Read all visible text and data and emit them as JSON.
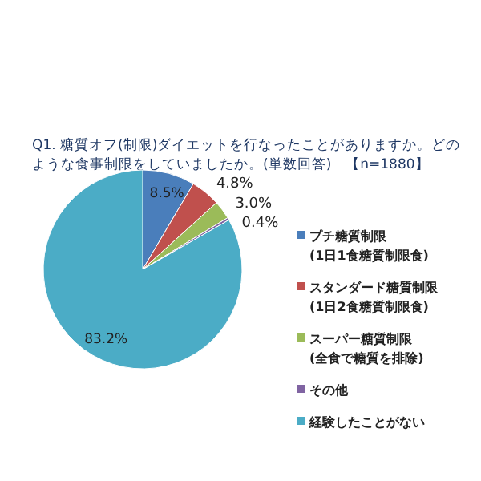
{
  "chart_data": {
    "type": "pie",
    "title": "Q1. 糖質オフ(制限)ダイエットを行なったことがありますか。どのような食事制限をしていましたか。(単数回答)　【n=1880】",
    "categories": [
      "プチ糖質制限\n(1日1食糖質制限食)",
      "スタンダード糖質制限\n(1日2食糖質制限食)",
      "スーパー糖質制限\n(全食で糖質を排除)",
      "その他",
      "経験したことがない"
    ],
    "values": [
      8.5,
      4.8,
      3.0,
      0.4,
      83.2
    ],
    "value_labels": [
      "8.5%",
      "4.8%",
      "3.0%",
      "0.4%",
      "83.2%"
    ],
    "colors": [
      "#4a7ebb",
      "#c0504d",
      "#9bbb59",
      "#8064a2",
      "#4bacc6"
    ],
    "legend": "right"
  }
}
